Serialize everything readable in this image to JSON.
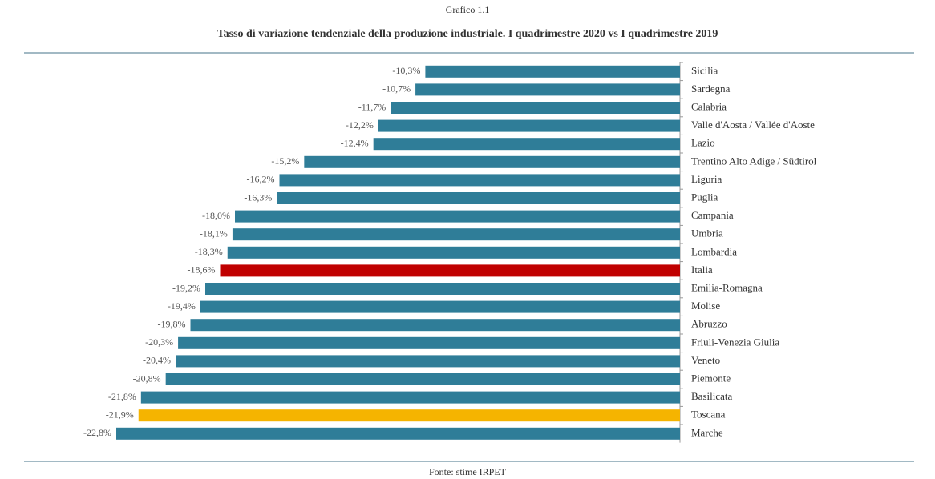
{
  "chart_data": {
    "type": "bar",
    "orientation": "horizontal",
    "title": "Grafico 1.1",
    "subtitle": "Tasso di variazione tendenziale della produzione industriale. I quadrimestre 2020 vs I quadrimestre 2019",
    "source": "Fonte: stime IRPET",
    "categories": [
      "Sicilia",
      "Sardegna",
      "Calabria",
      "Valle d'Aosta / Vallée d'Aoste",
      "Lazio",
      "Trentino Alto Adige / Südtirol",
      "Liguria",
      "Puglia",
      "Campania",
      "Umbria",
      "Lombardia",
      "Italia",
      "Emilia-Romagna",
      "Molise",
      "Abruzzo",
      "Friuli-Venezia Giulia",
      "Veneto",
      "Piemonte",
      "Basilicata",
      "Toscana",
      "Marche"
    ],
    "values": [
      -10.3,
      -10.7,
      -11.7,
      -12.2,
      -12.4,
      -15.2,
      -16.2,
      -16.3,
      -18.0,
      -18.1,
      -18.3,
      -18.6,
      -19.2,
      -19.4,
      -19.8,
      -20.3,
      -20.4,
      -20.8,
      -21.8,
      -21.9,
      -22.8
    ],
    "value_labels": [
      "-10,3%",
      "-10,7%",
      "-11,7%",
      "-12,2%",
      "-12,4%",
      "-15,2%",
      "-16,2%",
      "-16,3%",
      "-18,0%",
      "-18,1%",
      "-18,3%",
      "-18,6%",
      "-19,2%",
      "-19,4%",
      "-19,8%",
      "-20,3%",
      "-20,4%",
      "-20,8%",
      "-21,8%",
      "-21,9%",
      "-22,8%"
    ],
    "colors": [
      "#2f7d98",
      "#2f7d98",
      "#2f7d98",
      "#2f7d98",
      "#2f7d98",
      "#2f7d98",
      "#2f7d98",
      "#2f7d98",
      "#2f7d98",
      "#2f7d98",
      "#2f7d98",
      "#c00000",
      "#2f7d98",
      "#2f7d98",
      "#2f7d98",
      "#2f7d98",
      "#2f7d98",
      "#2f7d98",
      "#2f7d98",
      "#f5b400",
      "#2f7d98"
    ]
  }
}
